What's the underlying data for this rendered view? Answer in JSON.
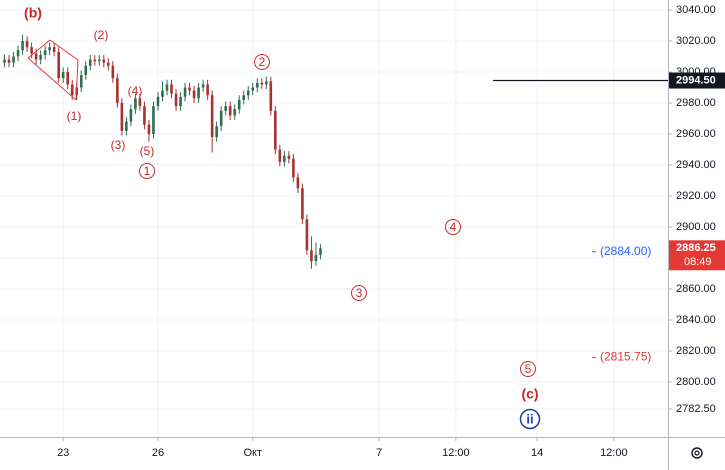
{
  "chart_data": {
    "type": "candlestick",
    "open": [
      3006,
      3008,
      3006,
      3010,
      3014,
      3020,
      3016,
      3012,
      3008,
      3011,
      3014,
      3016,
      3013,
      2996,
      3000,
      2992,
      2985,
      2990,
      2998,
      3004,
      3008,
      3007,
      3008,
      3006,
      3004,
      2996,
      2980,
      2962,
      2968,
      2976,
      2983,
      2978,
      2966,
      2960,
      2978,
      2984,
      2988,
      2992,
      2986,
      2978,
      2984,
      2990,
      2988,
      2983,
      2990,
      2992,
      2985,
      2958,
      2965,
      2975,
      2978,
      2972,
      2976,
      2982,
      2985,
      2988,
      2990,
      2993,
      2992,
      2994,
      2975,
      2950,
      2942,
      2946,
      2944,
      2932,
      2925,
      2905,
      2885,
      2878,
      2882
    ],
    "high": [
      3011,
      3011,
      3013,
      3017,
      3024,
      3023,
      3019,
      3015,
      3014,
      3017,
      3019,
      3019,
      3016,
      3003,
      3003,
      2995,
      2993,
      3001,
      3007,
      3011,
      3011,
      3011,
      3011,
      3009,
      3007,
      2999,
      2983,
      2971,
      2979,
      2986,
      2986,
      2981,
      2969,
      2981,
      2987,
      2994,
      2995,
      2995,
      2989,
      2987,
      2993,
      2993,
      2991,
      2993,
      2995,
      2995,
      2988,
      2968,
      2978,
      2981,
      2981,
      2979,
      2985,
      2988,
      2991,
      2993,
      2996,
      2996,
      2997,
      2997,
      2978,
      2953,
      2949,
      2949,
      2947,
      2935,
      2928,
      2908,
      2894,
      2890,
      2889
    ],
    "low": [
      3003,
      3003,
      3003,
      3007,
      3011,
      3013,
      3009,
      3005,
      3005,
      3008,
      3011,
      3010,
      2993,
      2993,
      2989,
      2982,
      2982,
      2987,
      2995,
      3001,
      3004,
      3004,
      3003,
      3001,
      2993,
      2977,
      2959,
      2959,
      2965,
      2973,
      2975,
      2963,
      2955,
      2957,
      2975,
      2981,
      2985,
      2983,
      2975,
      2975,
      2981,
      2985,
      2980,
      2980,
      2987,
      2982,
      2948,
      2955,
      2962,
      2972,
      2969,
      2969,
      2973,
      2979,
      2982,
      2985,
      2987,
      2989,
      2989,
      2972,
      2947,
      2939,
      2939,
      2941,
      2929,
      2922,
      2902,
      2882,
      2873,
      2875,
      2879
    ],
    "close": [
      3008,
      3006,
      3010,
      3014,
      3020,
      3016,
      3012,
      3008,
      3011,
      3014,
      3016,
      3013,
      2996,
      3000,
      2992,
      2985,
      2990,
      2998,
      3004,
      3008,
      3007,
      3008,
      3006,
      3004,
      2996,
      2980,
      2962,
      2968,
      2976,
      2983,
      2978,
      2966,
      2960,
      2978,
      2984,
      2988,
      2992,
      2986,
      2978,
      2984,
      2990,
      2988,
      2983,
      2990,
      2992,
      2985,
      2958,
      2965,
      2975,
      2978,
      2972,
      2976,
      2982,
      2985,
      2988,
      2990,
      2993,
      2992,
      2994,
      2975,
      2950,
      2942,
      2946,
      2944,
      2932,
      2925,
      2905,
      2885,
      2878,
      2882,
      2886.25
    ],
    "up_color": "#2f6f4f",
    "down_color": "#a83232",
    "ylim": [
      2764.5,
      3046.45
    ],
    "yticks": [
      {
        "value": 3040,
        "label": "3040.00"
      },
      {
        "value": 3020,
        "label": "3020.00"
      },
      {
        "value": 3000,
        "label": "3000.00"
      },
      {
        "value": 2980,
        "label": "2980.00"
      },
      {
        "value": 2960,
        "label": "2960.00"
      },
      {
        "value": 2940,
        "label": "2940.00"
      },
      {
        "value": 2920,
        "label": "2920.00"
      },
      {
        "value": 2900,
        "label": "2900.00"
      },
      {
        "value": 2880,
        "label": "2880.00"
      },
      {
        "value": 2860,
        "label": "2860.00"
      },
      {
        "value": 2840,
        "label": "2840.00"
      },
      {
        "value": 2820,
        "label": "2820.00"
      },
      {
        "value": 2800,
        "label": "2800.00"
      },
      {
        "value": 2782.5,
        "label": "2782.50"
      }
    ],
    "xlim": [
      0,
      148
    ],
    "xticks": [
      {
        "value": 14,
        "label": "23"
      },
      {
        "value": 35,
        "label": "26"
      },
      {
        "value": 56,
        "label": "Окт"
      },
      {
        "value": 84,
        "label": "7"
      },
      {
        "value": 101,
        "label": "12:00"
      },
      {
        "value": 119,
        "label": "14"
      },
      {
        "value": 136,
        "label": "12:00"
      }
    ],
    "grid": true,
    "levels": [
      {
        "value": 2884,
        "label": "(2884.00)",
        "color": "#2962ff"
      },
      {
        "value": 2815.75,
        "label": "(2815.75)",
        "color": "#e53935"
      }
    ],
    "horizontal_line": {
      "value": 2994.5,
      "label": "2994.50"
    },
    "last_price": {
      "value": 2886.25,
      "label": "2886.25",
      "countdown": "08:49",
      "color": "#e53935"
    },
    "waves": [
      "(b)",
      "(2)",
      "(1)",
      "(4)",
      "(3)",
      "(5)",
      "1",
      "2",
      "3",
      "4",
      "5",
      "(c)",
      "ii"
    ]
  }
}
